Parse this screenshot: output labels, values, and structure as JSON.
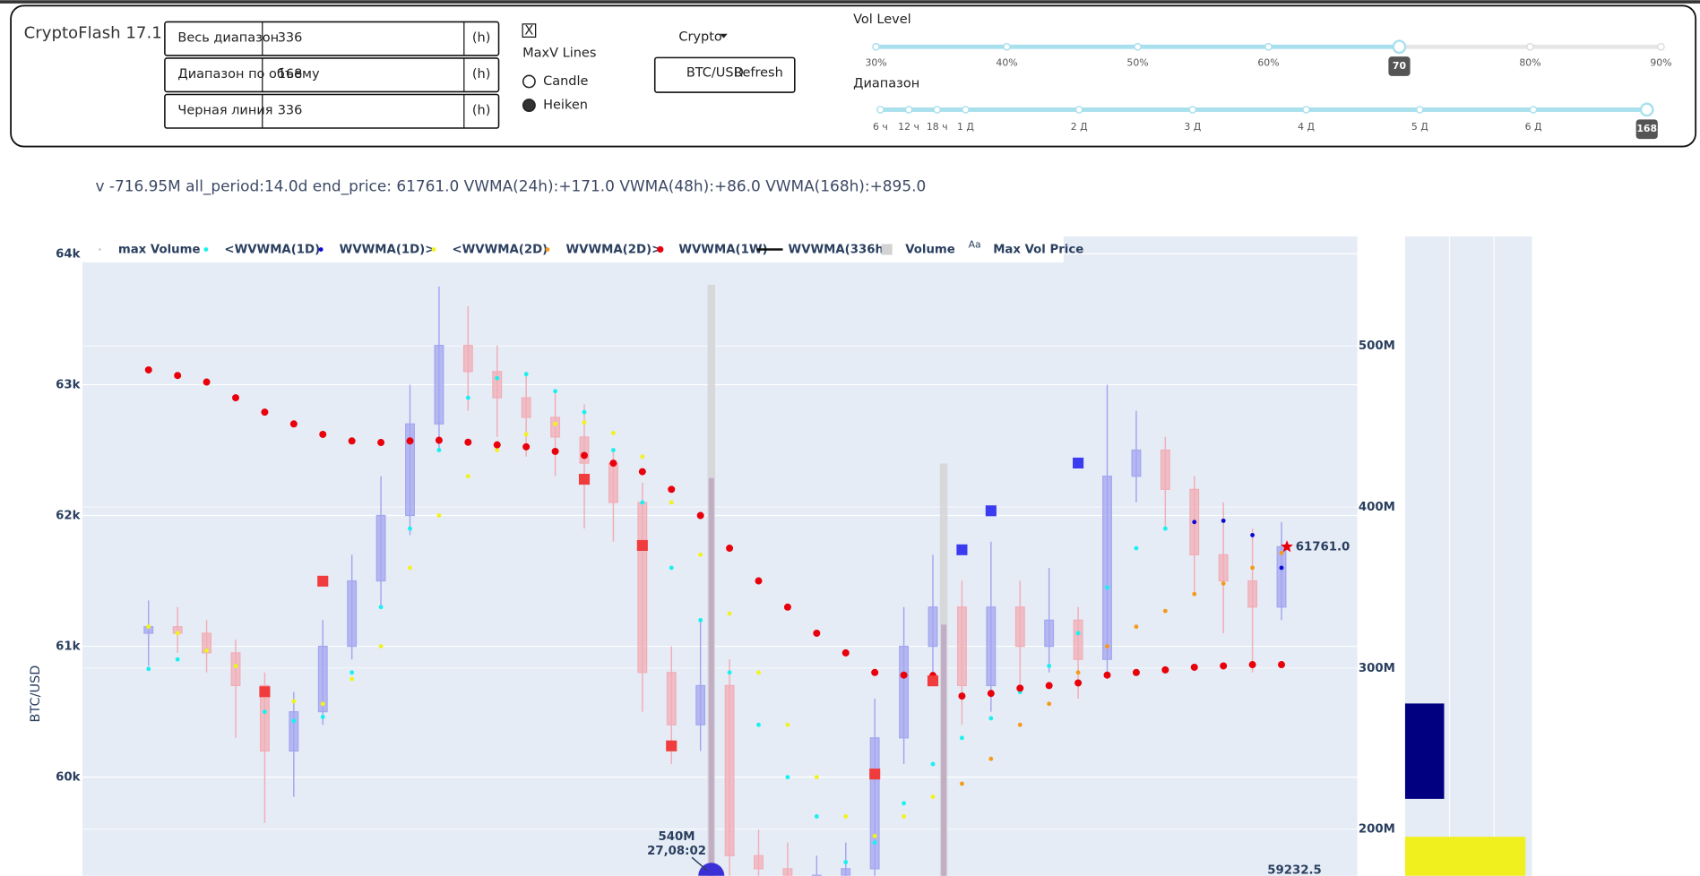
{
  "header": {
    "title": "CryptoFlash 17.1",
    "inputs": [
      {
        "label": "Весь диапазон",
        "value": 336,
        "unit": "(h)"
      },
      {
        "label": "Диапазон по объему",
        "value": 168,
        "unit": "(h)"
      },
      {
        "label": "Черная линия",
        "value": 336,
        "unit": "(h)"
      }
    ],
    "checkbox": {
      "mark": "X",
      "label": "MaxV Lines"
    },
    "radios": [
      {
        "label": "Candle",
        "selected": false
      },
      {
        "label": "Heiken",
        "selected": true
      }
    ],
    "dropdown": "Crypto",
    "button": {
      "pair": "BTC/USD",
      "label": "Refresh"
    },
    "sliders": [
      {
        "label": "Vol Level",
        "min": 30,
        "max": 90,
        "value": 70,
        "marks": [
          {
            "value": 30,
            "label": "30%"
          },
          {
            "value": 40,
            "label": "40%"
          },
          {
            "value": 50,
            "label": "50%"
          },
          {
            "value": 60,
            "label": "60%"
          },
          {
            "value": 70,
            "label": "70%"
          },
          {
            "value": 80,
            "label": "80%"
          },
          {
            "value": 90,
            "label": "90%"
          }
        ]
      },
      {
        "label": "Диапазон",
        "min": 6,
        "max": 168,
        "value": 168,
        "marks": [
          {
            "value": 6,
            "label": "6 ч"
          },
          {
            "value": 12,
            "label": "12 ч"
          },
          {
            "value": 18,
            "label": "18 ч"
          },
          {
            "value": 24,
            "label": "1 Д"
          },
          {
            "value": 48,
            "label": "2 Д"
          },
          {
            "value": 72,
            "label": "3 Д"
          },
          {
            "value": 96,
            "label": "4 Д"
          },
          {
            "value": 120,
            "label": "5 Д"
          },
          {
            "value": 144,
            "label": "6 Д"
          }
        ]
      }
    ]
  },
  "info": "v -716.95M all_period:14.0d end_price: 61761.0 VWMA(24h):+171.0 VWMA(48h):+86.0 VWMA(168h):+895.0",
  "chart_data": {
    "type": "candlestick",
    "ylabel": "BTC/USD",
    "ylim": [
      59246,
      64133
    ],
    "yticks": [
      {
        "value": 60000,
        "label": "60k"
      },
      {
        "value": 61000,
        "label": "61k"
      },
      {
        "value": 62000,
        "label": "62k"
      },
      {
        "value": 63000,
        "label": "63k"
      },
      {
        "value": 64000,
        "label": "64k"
      }
    ],
    "y2lim": [
      171000000,
      568000000
    ],
    "y2ticks": [
      {
        "value": 200000000,
        "label": "200M"
      },
      {
        "value": 300000000,
        "label": "300M"
      },
      {
        "value": 400000000,
        "label": "400M"
      },
      {
        "value": 500000000,
        "label": "500M"
      }
    ],
    "grid": true,
    "candles": {
      "up_color": "#a3a6ef",
      "down_color": "#f2adb6",
      "open": [
        61100,
        61150,
        61100,
        60950,
        60700,
        60200,
        60500,
        61000,
        61500,
        62000,
        62700,
        63300,
        63100,
        62900,
        62750,
        62600,
        62400,
        62100,
        60800,
        60400,
        60700,
        59400,
        59300,
        59250,
        59250,
        59300,
        60300,
        61000,
        61300,
        60700,
        61300,
        61000,
        61200,
        60900,
        62300,
        62500,
        62200,
        61700,
        61500,
        61300
      ],
      "high": [
        61350,
        61300,
        61200,
        61050,
        60800,
        60650,
        61200,
        61700,
        62300,
        63000,
        63750,
        63600,
        63300,
        63100,
        62950,
        62850,
        62500,
        62250,
        61000,
        61200,
        60900,
        59600,
        59500,
        59400,
        59500,
        60600,
        61300,
        61700,
        61500,
        61800,
        61500,
        61600,
        61300,
        63000,
        62800,
        62600,
        62300,
        62100,
        61900,
        61950
      ],
      "low": [
        60850,
        60950,
        60800,
        60300,
        59650,
        59850,
        60400,
        60900,
        61300,
        61850,
        62500,
        62800,
        62600,
        62450,
        62300,
        61900,
        61800,
        60500,
        60100,
        60200,
        59200,
        59100,
        59100,
        59100,
        59100,
        59200,
        60100,
        60700,
        60400,
        60500,
        60700,
        60800,
        60600,
        60800,
        62100,
        61900,
        61400,
        61100,
        60800,
        61200
      ],
      "close": [
        61150,
        61100,
        60950,
        60700,
        60200,
        60500,
        61000,
        61500,
        62000,
        62700,
        63300,
        63100,
        62900,
        62750,
        62600,
        62400,
        62100,
        60800,
        60400,
        60700,
        59400,
        59300,
        59250,
        59250,
        59300,
        60300,
        61000,
        61300,
        60700,
        61300,
        61000,
        61200,
        60900,
        62300,
        62500,
        62200,
        61700,
        61500,
        61300,
        61761
      ]
    },
    "series": [
      {
        "name": "max Volume",
        "mode": "bar",
        "axis": "y2",
        "color": "#7b1a86",
        "values": [
          null,
          null,
          null,
          null,
          null,
          null,
          null,
          null,
          null,
          null,
          null,
          null,
          null,
          null,
          null,
          null,
          null,
          null,
          null,
          418000000,
          null,
          null,
          null,
          null,
          null,
          null,
          null,
          327000000,
          null,
          null,
          null,
          null,
          null,
          null,
          null,
          null,
          null,
          null,
          null,
          null
        ]
      },
      {
        "name": "<WVWMA(1D)",
        "mode": "dots",
        "color": "#19f0f0",
        "values": [
          60827,
          60900,
          60967,
          60850,
          60500,
          60430,
          60460,
          60800,
          61300,
          61900,
          62500,
          62900,
          63050,
          63080,
          62950,
          62790,
          62500,
          62100,
          61600,
          61200,
          60800,
          60400,
          60000,
          59700,
          59350,
          59500,
          59800,
          60100,
          60300,
          60450,
          60650,
          60850,
          61100,
          61450,
          61750,
          61900,
          null,
          null,
          null,
          null
        ]
      },
      {
        "name": "WVWMA(1D)>",
        "mode": "dots",
        "color": "#0a0ad2",
        "values": [
          null,
          null,
          null,
          null,
          null,
          null,
          null,
          null,
          null,
          null,
          null,
          null,
          null,
          null,
          null,
          null,
          null,
          null,
          null,
          null,
          null,
          null,
          null,
          null,
          null,
          null,
          null,
          null,
          null,
          null,
          null,
          null,
          null,
          null,
          null,
          null,
          61950,
          61960,
          61850,
          61600
        ]
      },
      {
        "name": "<WVWMA(2D)",
        "mode": "dots",
        "color": "#f2f21a",
        "values": [
          61150,
          61100,
          60967,
          60850,
          60650,
          60580,
          60560,
          60750,
          61000,
          61600,
          62000,
          62300,
          62500,
          62620,
          62700,
          62710,
          62630,
          62450,
          62100,
          61700,
          61250,
          60800,
          60400,
          60000,
          59700,
          59550,
          59700,
          59850,
          null,
          null,
          null,
          null,
          null,
          null,
          null,
          null,
          null,
          null,
          null,
          null
        ]
      },
      {
        "name": "WVWMA(2D)>",
        "mode": "dots",
        "color": "#f59a1a",
        "values": [
          null,
          null,
          null,
          null,
          null,
          null,
          null,
          null,
          null,
          null,
          null,
          null,
          null,
          null,
          null,
          null,
          null,
          null,
          null,
          null,
          null,
          null,
          null,
          null,
          null,
          null,
          null,
          null,
          59950,
          60140,
          60400,
          60560,
          60800,
          61000,
          61150,
          61270,
          61400,
          61480,
          61600,
          61713
        ]
      },
      {
        "name": "WVWMA(1W)",
        "mode": "bigdots",
        "color": "#e8000b",
        "values": [
          63113,
          63070,
          63020,
          62900,
          62790,
          62700,
          62620,
          62570,
          62558,
          62570,
          62575,
          62560,
          62540,
          62525,
          62490,
          62459,
          62400,
          62335,
          62200,
          62000,
          61750,
          61500,
          61300,
          61100,
          60950,
          60800,
          60780,
          60777,
          60620,
          60640,
          60680,
          60700,
          60720,
          60780,
          60800,
          60820,
          60840,
          60850,
          60860,
          60860
        ]
      },
      {
        "name": "WVWMA(336h)",
        "mode": "line",
        "color": "#111111",
        "values": [
          null,
          null,
          null,
          null,
          null,
          null,
          null,
          null,
          null,
          null,
          null,
          null,
          null,
          null,
          null,
          null,
          null,
          null,
          null,
          null,
          null,
          null,
          null,
          null,
          null,
          null,
          null,
          null,
          null,
          null,
          null,
          null,
          null,
          null,
          null,
          null,
          null,
          null,
          null,
          null
        ]
      },
      {
        "name": "Volume",
        "mode": "bar",
        "axis": "y2",
        "color": "#d3d3d3",
        "values": [
          null,
          null,
          null,
          null,
          null,
          null,
          null,
          null,
          null,
          null,
          null,
          null,
          null,
          null,
          null,
          null,
          null,
          null,
          null,
          538000000,
          null,
          null,
          null,
          null,
          null,
          null,
          null,
          427000000,
          null,
          null,
          null,
          null,
          null,
          null,
          null,
          null,
          null,
          null,
          null,
          null
        ]
      },
      {
        "name": "Max Vol Price",
        "mode": "squares",
        "legend_symbol": "Aa",
        "values": [
          null,
          null,
          null,
          null,
          60653,
          null,
          61498,
          null,
          null,
          null,
          null,
          null,
          null,
          null,
          null,
          62277,
          null,
          61771,
          60239,
          null,
          null,
          null,
          null,
          null,
          null,
          60024,
          null,
          60736,
          61738,
          62036,
          null,
          null,
          62401,
          null,
          null,
          null,
          null,
          null,
          null,
          null
        ],
        "colors": [
          null,
          null,
          null,
          null,
          "#f03c3c",
          null,
          "#f03c3c",
          null,
          null,
          null,
          null,
          null,
          null,
          null,
          null,
          "#f03c3c",
          null,
          "#f03c3c",
          "#f03c3c",
          null,
          null,
          null,
          null,
          null,
          null,
          "#f03c3c",
          null,
          "#f03c3c",
          "#3b3bf0",
          "#3b3bf0",
          null,
          null,
          "#3b3bf0",
          null,
          null,
          null,
          null,
          null,
          null,
          null
        ]
      }
    ],
    "annotations": [
      {
        "text": "61761.0",
        "value": 61761
      },
      {
        "text": "59232.5",
        "value": 59232.5
      },
      {
        "text": "540M",
        "subtext": "27,08:02"
      }
    ]
  }
}
